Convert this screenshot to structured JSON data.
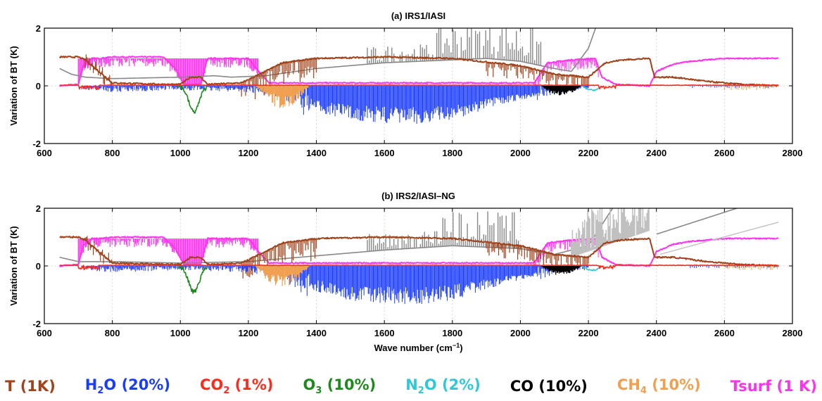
{
  "chart_data": [
    {
      "type": "line",
      "title": "(a) IRS1/IASI",
      "xlabel": "",
      "ylabel": "Variation of BT (K)",
      "xlim": [
        600,
        2800
      ],
      "ylim": [
        -2,
        2
      ],
      "xticks": [
        600,
        800,
        1000,
        1200,
        1400,
        1600,
        1800,
        2000,
        2200,
        2400,
        2600,
        2800
      ],
      "yticks": [
        -2,
        0,
        2
      ],
      "grid": true,
      "x_range": [
        645,
        2760
      ]
    },
    {
      "type": "line",
      "title": "(b) IRS2/IASI–NG",
      "xlabel": "Wave number (cm",
      "xlabel_sup": "−1",
      "xlabel_end": ")",
      "ylabel": "Variation of BT (K)",
      "xlim": [
        600,
        2800
      ],
      "ylim": [
        -2,
        2
      ],
      "xticks": [
        600,
        800,
        1000,
        1200,
        1400,
        1600,
        1800,
        2000,
        2200,
        2400,
        2600,
        2800
      ],
      "yticks": [
        -2,
        0,
        2
      ],
      "grid": true,
      "x_range": [
        645,
        2760
      ]
    }
  ],
  "legend": [
    {
      "base": "T (1K)",
      "sub": "",
      "rest": "",
      "color": "#a0421a"
    },
    {
      "base": "H",
      "sub": "2",
      "rest": "O (20%)",
      "color": "#1a3cff"
    },
    {
      "base": "CO",
      "sub": "2",
      "rest": " (1%)",
      "color": "#ff2a1a"
    },
    {
      "base": "O",
      "sub": "3",
      "rest": " (10%)",
      "color": "#1e8a1e"
    },
    {
      "base": "N",
      "sub": "2",
      "rest": "O (2%)",
      "color": "#2ec8d8"
    },
    {
      "base": "CO (10%)",
      "sub": "",
      "rest": "",
      "color": "#000000"
    },
    {
      "base": "CH",
      "sub": "4",
      "rest": " (10%)",
      "color": "#f0a050"
    },
    {
      "base": "Tsurf (1 K)",
      "sub": "",
      "rest": "",
      "color": "#ff33ee"
    }
  ],
  "colors": {
    "T": "#a0421a",
    "H2O": "#1a3cff",
    "CO2": "#ff2a1a",
    "O3": "#1e8a1e",
    "N2O": "#2ec8d8",
    "CO": "#000000",
    "CH4": "#f0a050",
    "Tsurf": "#ff33ee",
    "ref": "#888888",
    "ref_light": "#c0c0c0"
  }
}
